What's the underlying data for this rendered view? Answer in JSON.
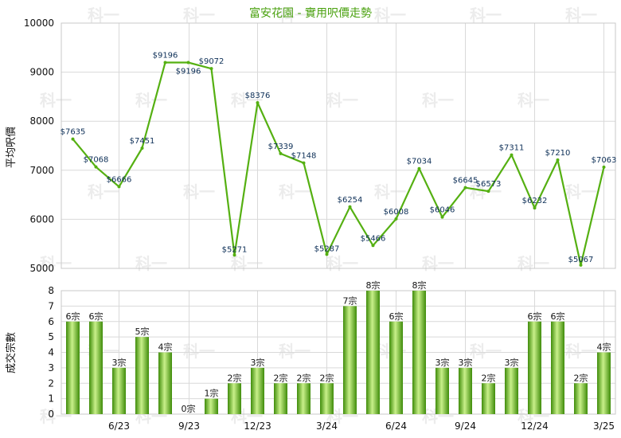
{
  "title": "富安花園 - 實用呎價走勢",
  "watermark": "科一",
  "colors": {
    "line": "#55b012",
    "bar_dark": "#3f8c0a",
    "bar_light": "#c9f08a",
    "grid": "#d9d9d9",
    "title": "#4aa10f"
  },
  "chart_data": [
    {
      "type": "line",
      "ylabel": "平均呎價",
      "ylim": [
        5000,
        10000
      ],
      "yticks": [
        "10000",
        "9000",
        "8000",
        "7000",
        "6000",
        "5000"
      ],
      "grid": true,
      "x": [
        0,
        1,
        2,
        3,
        4,
        5,
        6,
        7,
        8,
        9,
        10,
        11,
        12,
        13,
        14,
        15,
        16,
        17,
        18,
        19,
        20,
        21,
        22,
        23
      ],
      "values": [
        7635,
        7068,
        6666,
        7451,
        9196,
        9196,
        9072,
        5271,
        8376,
        7339,
        7148,
        5287,
        6254,
        5466,
        6008,
        7034,
        6046,
        6645,
        6573,
        7311,
        6232,
        7210,
        5067,
        7063
      ],
      "labels": [
        "$7635",
        "$7068",
        "$6666",
        "$7451",
        "$9196",
        "$9196",
        "$9072",
        "$5271",
        "$8376",
        "$7339",
        "$7148",
        "$5287",
        "$6254",
        "$5466",
        "$6008",
        "$7034",
        "$6046",
        "$6645",
        "$6573",
        "$7311",
        "$6232",
        "$7210",
        "$5067",
        "$7063"
      ]
    },
    {
      "type": "bar",
      "ylabel": "成交宗數",
      "ylim": [
        0,
        8
      ],
      "yticks": [
        "8",
        "7",
        "6",
        "5",
        "4",
        "3",
        "2",
        "1",
        "0"
      ],
      "grid": true,
      "x_tick_labels": [
        "6/23",
        "9/23",
        "12/23",
        "3/24",
        "6/24",
        "9/24",
        "12/24",
        "3/25"
      ],
      "values": [
        6,
        6,
        3,
        5,
        4,
        0,
        1,
        2,
        3,
        2,
        2,
        2,
        7,
        8,
        6,
        8,
        3,
        3,
        2,
        3,
        6,
        6,
        2,
        4
      ],
      "labels": [
        "6宗",
        "6宗",
        "3宗",
        "5宗",
        "4宗",
        "0宗",
        "1宗",
        "2宗",
        "3宗",
        "2宗",
        "2宗",
        "2宗",
        "7宗",
        "8宗",
        "6宗",
        "8宗",
        "3宗",
        "3宗",
        "2宗",
        "3宗",
        "6宗",
        "6宗",
        "2宗",
        "4宗"
      ]
    }
  ]
}
